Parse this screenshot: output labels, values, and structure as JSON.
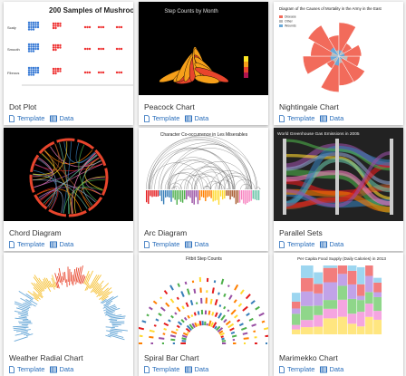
{
  "cards": [
    {
      "title": "Dot Plot",
      "thumbnail": {
        "title": "200 Samples of Mushroo",
        "labels": [
          "Scaly",
          "Smooth",
          "Fibrous"
        ]
      },
      "links": [
        "Template",
        "Data"
      ]
    },
    {
      "title": "Peacock Chart",
      "thumbnail": {
        "title": "Step Counts by Month"
      },
      "links": [
        "Template",
        "Data"
      ]
    },
    {
      "title": "Nightingale Chart",
      "thumbnail": {
        "title": "Diagram of the Causes of Mortality in the Army in the East",
        "labels": [
          "Disease",
          "Other",
          "Wounds"
        ]
      },
      "links": [
        "Template",
        "Data"
      ]
    },
    {
      "title": "Chord Diagram",
      "thumbnail": {},
      "links": [
        "Template",
        "Data"
      ]
    },
    {
      "title": "Arc Diagram",
      "thumbnail": {
        "title": "Character Co-occurrence in Les Miserables"
      },
      "links": [
        "Template",
        "Data"
      ]
    },
    {
      "title": "Parallel Sets",
      "thumbnail": {
        "title": "World Greenhouse Gas Emissions in 2005"
      },
      "links": [
        "Template",
        "Data"
      ]
    },
    {
      "title": "Weather Radial Chart",
      "thumbnail": {},
      "links": [
        "Template",
        "Data"
      ]
    },
    {
      "title": "Spiral Bar Chart",
      "thumbnail": {
        "title": "Fitbit Step Counts"
      },
      "links": [
        "Template",
        "Data"
      ]
    },
    {
      "title": "Marimekko Chart",
      "thumbnail": {
        "title": "Per Capita Food Supply (Daily Calories) in 2013"
      },
      "links": [
        "Template",
        "Data"
      ]
    }
  ]
}
